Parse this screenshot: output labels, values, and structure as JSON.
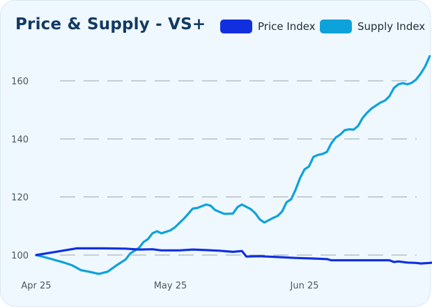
{
  "chart_data": {
    "type": "line",
    "title": "Price & Supply - VS+",
    "xlabel": "",
    "ylabel": "",
    "legend_position": "top-right",
    "grid": "horizontal-dashed",
    "xlim": [
      0,
      74
    ],
    "ylim": [
      96,
      170
    ],
    "yticks": [
      100,
      120,
      140,
      160
    ],
    "xticks": [
      {
        "x": 0,
        "label": "Apr 25"
      },
      {
        "x": 30,
        "label": "May 25"
      },
      {
        "x": 60,
        "label": "Jun 25"
      }
    ],
    "series": [
      {
        "name": "Price Index",
        "color": "#1030e0",
        "points": [
          [
            0,
            100
          ],
          [
            4,
            101
          ],
          [
            9,
            102.3
          ],
          [
            15,
            102.3
          ],
          [
            20,
            102.2
          ],
          [
            23,
            101.9
          ],
          [
            26,
            102.0
          ],
          [
            28,
            101.6
          ],
          [
            32,
            101.6
          ],
          [
            35,
            101.9
          ],
          [
            38,
            101.7
          ],
          [
            41,
            101.5
          ],
          [
            44,
            101.1
          ],
          [
            46,
            101.4
          ],
          [
            47,
            99.5
          ],
          [
            50,
            99.6
          ],
          [
            54,
            99.3
          ],
          [
            58,
            99.0
          ],
          [
            62,
            98.8
          ],
          [
            65,
            98.6
          ],
          [
            66,
            98.2
          ],
          [
            70,
            98.2
          ],
          [
            76,
            98.2
          ],
          [
            79,
            98.2
          ],
          [
            80,
            97.6
          ],
          [
            81,
            97.8
          ],
          [
            83,
            97.4
          ],
          [
            85,
            97.3
          ],
          [
            86,
            97.1
          ],
          [
            88,
            97.3
          ],
          [
            89,
            97.4
          ]
        ]
      },
      {
        "name": "Supply Index",
        "color": "#0ea2db",
        "points": [
          [
            0,
            100
          ],
          [
            3,
            98.8
          ],
          [
            6,
            97.5
          ],
          [
            8,
            96.5
          ],
          [
            10,
            94.8
          ],
          [
            12,
            94.2
          ],
          [
            14,
            93.5
          ],
          [
            16,
            94.3
          ],
          [
            18,
            96.5
          ],
          [
            20,
            98.5
          ],
          [
            21,
            100.5
          ],
          [
            23,
            102.5
          ],
          [
            24,
            104.5
          ],
          [
            25,
            105.5
          ],
          [
            26,
            107.5
          ],
          [
            27,
            108.2
          ],
          [
            28,
            107.5
          ],
          [
            30,
            108.5
          ],
          [
            31,
            109.5
          ],
          [
            32,
            111
          ],
          [
            33,
            112.5
          ],
          [
            34,
            114.2
          ],
          [
            35,
            116
          ],
          [
            36,
            116.2
          ],
          [
            37,
            116.8
          ],
          [
            38,
            117.4
          ],
          [
            39,
            117
          ],
          [
            40,
            115.5
          ],
          [
            42,
            114.2
          ],
          [
            43,
            114.2
          ],
          [
            44,
            114.3
          ],
          [
            45,
            116.5
          ],
          [
            46,
            117.4
          ],
          [
            48,
            115.8
          ],
          [
            49,
            114.4
          ],
          [
            50,
            112.3
          ],
          [
            51,
            111.2
          ],
          [
            52,
            112
          ],
          [
            53,
            112.8
          ],
          [
            54,
            113.5
          ],
          [
            55,
            115
          ],
          [
            56,
            118.2
          ],
          [
            57,
            119.2
          ],
          [
            58,
            122.5
          ],
          [
            59,
            126.5
          ],
          [
            60,
            129.5
          ],
          [
            61,
            130.5
          ],
          [
            62,
            133.8
          ],
          [
            63,
            134.5
          ],
          [
            64,
            134.8
          ],
          [
            65,
            135.5
          ],
          [
            66,
            138.5
          ],
          [
            67,
            140.5
          ],
          [
            68,
            141.5
          ],
          [
            69,
            143
          ],
          [
            70,
            143.3
          ],
          [
            71,
            143.2
          ],
          [
            72,
            144.5
          ],
          [
            73,
            147.2
          ],
          [
            74,
            149
          ],
          [
            75,
            150.5
          ],
          [
            76,
            151.5
          ],
          [
            77,
            152.5
          ],
          [
            78,
            153.2
          ],
          [
            79,
            154.7
          ],
          [
            80,
            157.5
          ],
          [
            81,
            158.8
          ],
          [
            82,
            159.2
          ],
          [
            83,
            158.8
          ],
          [
            84,
            159.3
          ],
          [
            85,
            160.5
          ],
          [
            86,
            162.5
          ],
          [
            87,
            165
          ],
          [
            88,
            168.5
          ]
        ]
      }
    ]
  }
}
